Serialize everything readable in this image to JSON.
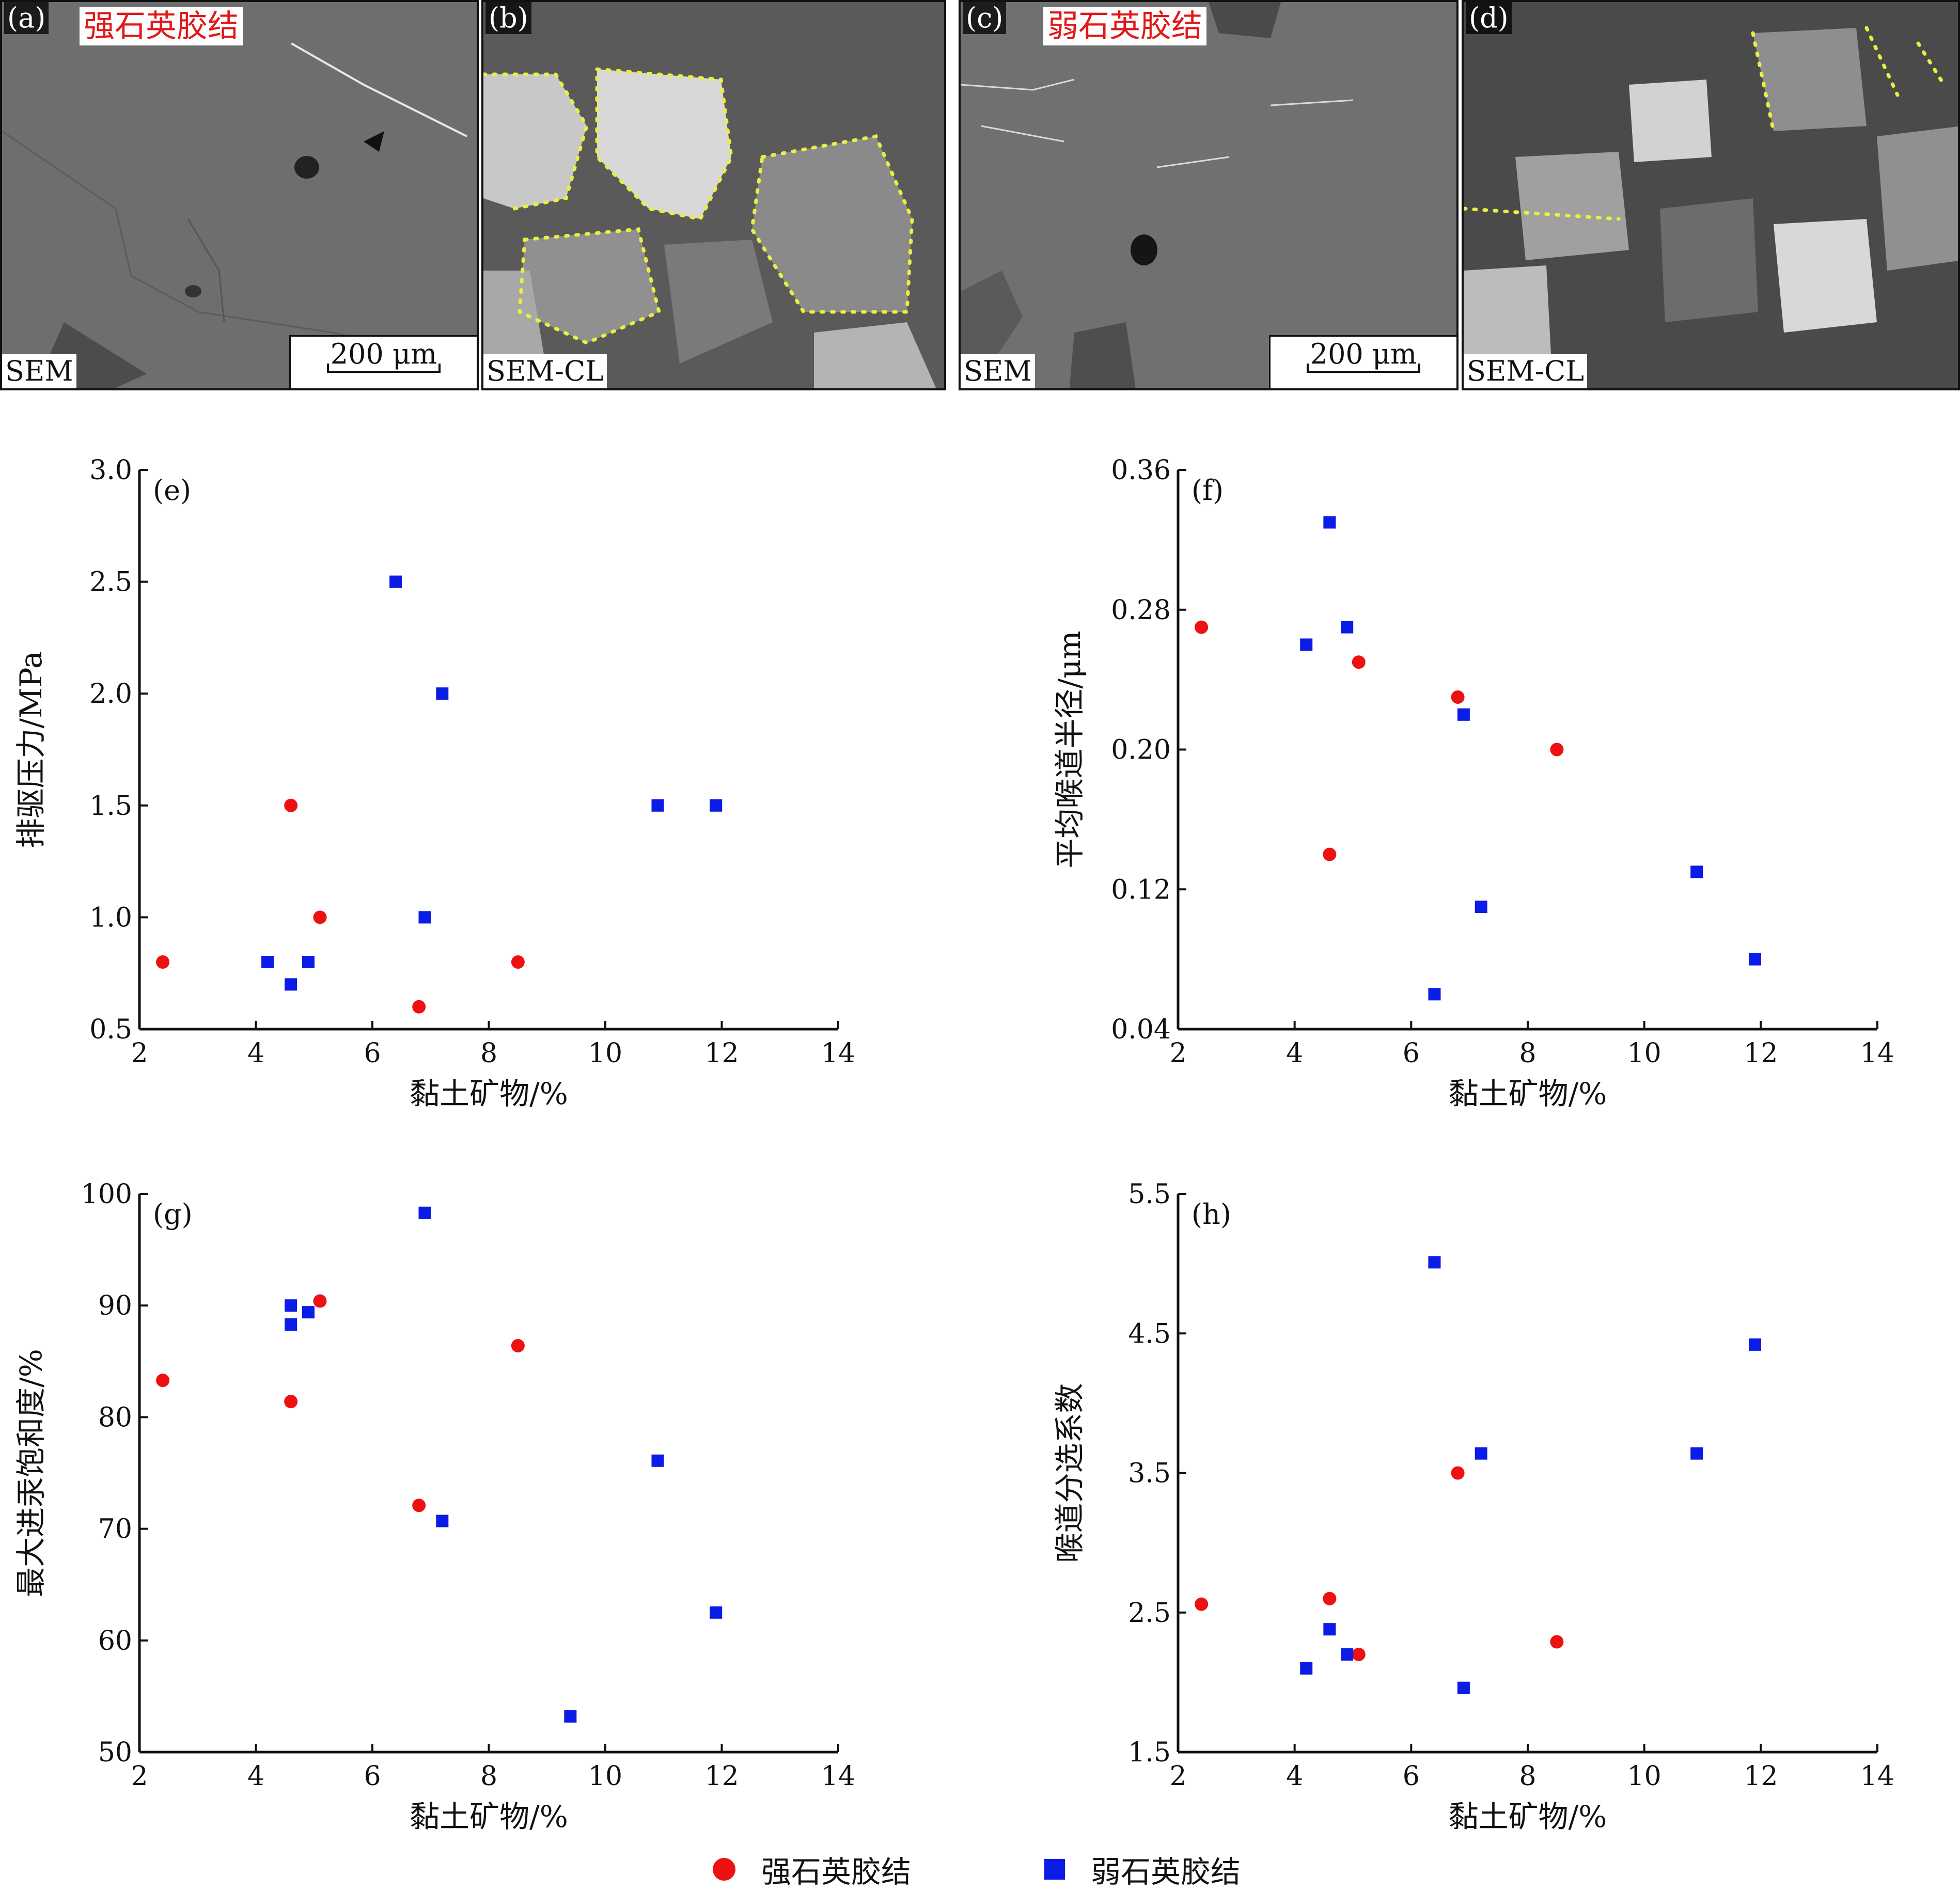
{
  "micrographs": [
    {
      "label": "(a)",
      "title": "强石英胶结",
      "tag": "SEM",
      "scale": "200 μm"
    },
    {
      "label": "(b)",
      "title": "",
      "tag": "SEM-CL",
      "scale": ""
    },
    {
      "label": "(c)",
      "title": "弱石英胶结",
      "tag": "SEM",
      "scale": "200 μm"
    },
    {
      "label": "(d)",
      "title": "",
      "tag": "SEM-CL",
      "scale": ""
    }
  ],
  "legend": {
    "strong": {
      "label": "强石英胶结",
      "color": "#ee1111",
      "marker": "circle"
    },
    "weak": {
      "label": "弱石英胶结",
      "color": "#0a1ce6",
      "marker": "square"
    }
  },
  "chart_data": [
    {
      "panel": "(e)",
      "type": "scatter",
      "xlabel": "黏土矿物/%",
      "ylabel": "排驱压力/MPa",
      "xlim": [
        2,
        14
      ],
      "xticks": [
        "2",
        "4",
        "6",
        "8",
        "10",
        "12",
        "14"
      ],
      "ylim": [
        0.5,
        3.0
      ],
      "yticks": [
        "0.5",
        "1.0",
        "1.5",
        "2.0",
        "2.5",
        "3.0"
      ],
      "series": [
        {
          "name": "强石英胶结",
          "points": [
            [
              2.4,
              0.8
            ],
            [
              4.6,
              1.5
            ],
            [
              5.1,
              1.0
            ],
            [
              6.8,
              0.6
            ],
            [
              8.5,
              0.8
            ]
          ]
        },
        {
          "name": "弱石英胶结",
          "points": [
            [
              4.2,
              0.8
            ],
            [
              4.6,
              0.7
            ],
            [
              4.9,
              0.8
            ],
            [
              6.4,
              2.5
            ],
            [
              6.9,
              1.0
            ],
            [
              7.2,
              2.0
            ],
            [
              10.9,
              1.5
            ],
            [
              11.9,
              1.5
            ]
          ]
        }
      ]
    },
    {
      "panel": "(f)",
      "type": "scatter",
      "xlabel": "黏土矿物/%",
      "ylabel": "平均喉道半径/μm",
      "xlim": [
        2,
        14
      ],
      "xticks": [
        "2",
        "4",
        "6",
        "8",
        "10",
        "12",
        "14"
      ],
      "ylim": [
        0.04,
        0.36
      ],
      "yticks": [
        "0.04",
        "0.12",
        "0.20",
        "0.28",
        "0.36"
      ],
      "series": [
        {
          "name": "强石英胶结",
          "points": [
            [
              2.4,
              0.27
            ],
            [
              4.6,
              0.14
            ],
            [
              5.1,
              0.25
            ],
            [
              6.8,
              0.23
            ],
            [
              8.5,
              0.2
            ]
          ]
        },
        {
          "name": "弱石英胶结",
          "points": [
            [
              4.2,
              0.26
            ],
            [
              4.6,
              0.33
            ],
            [
              4.9,
              0.27
            ],
            [
              6.4,
              0.06
            ],
            [
              6.9,
              0.22
            ],
            [
              7.2,
              0.11
            ],
            [
              10.9,
              0.13
            ],
            [
              11.9,
              0.08
            ]
          ]
        }
      ]
    },
    {
      "panel": "(g)",
      "type": "scatter",
      "xlabel": "黏土矿物/%",
      "ylabel": "最大进汞饱和度/%",
      "xlim": [
        2,
        14
      ],
      "xticks": [
        "2",
        "4",
        "6",
        "8",
        "10",
        "12",
        "14"
      ],
      "ylim": [
        50,
        100
      ],
      "yticks": [
        "50",
        "60",
        "70",
        "80",
        "90",
        "100"
      ],
      "series": [
        {
          "name": "强石英胶结",
          "points": [
            [
              2.4,
              83.3
            ],
            [
              4.6,
              81.4
            ],
            [
              5.1,
              90.4
            ],
            [
              6.8,
              72.1
            ],
            [
              8.5,
              86.4
            ]
          ]
        },
        {
          "name": "弱石英胶结",
          "points": [
            [
              4.6,
              90.0
            ],
            [
              4.6,
              88.3
            ],
            [
              4.9,
              89.4
            ],
            [
              6.9,
              98.3
            ],
            [
              7.2,
              70.7
            ],
            [
              9.4,
              53.2
            ],
            [
              10.9,
              76.1
            ],
            [
              11.9,
              62.5
            ]
          ]
        }
      ]
    },
    {
      "panel": "(h)",
      "type": "scatter",
      "xlabel": "黏土矿物/%",
      "ylabel": "喉道分选系数",
      "xlim": [
        2,
        14
      ],
      "xticks": [
        "2",
        "4",
        "6",
        "8",
        "10",
        "12",
        "14"
      ],
      "ylim": [
        1.5,
        5.5
      ],
      "yticks": [
        "1.5",
        "2.5",
        "3.5",
        "4.5",
        "5.5"
      ],
      "series": [
        {
          "name": "强石英胶结",
          "points": [
            [
              2.4,
              2.56
            ],
            [
              4.6,
              2.6
            ],
            [
              5.1,
              2.2
            ],
            [
              6.8,
              3.5
            ],
            [
              8.5,
              2.29
            ]
          ]
        },
        {
          "name": "弱石英胶结",
          "points": [
            [
              4.2,
              2.1
            ],
            [
              4.6,
              2.38
            ],
            [
              4.9,
              2.2
            ],
            [
              6.4,
              5.01
            ],
            [
              6.9,
              1.96
            ],
            [
              7.2,
              3.64
            ],
            [
              10.9,
              3.64
            ],
            [
              11.9,
              4.42
            ]
          ]
        }
      ]
    }
  ]
}
